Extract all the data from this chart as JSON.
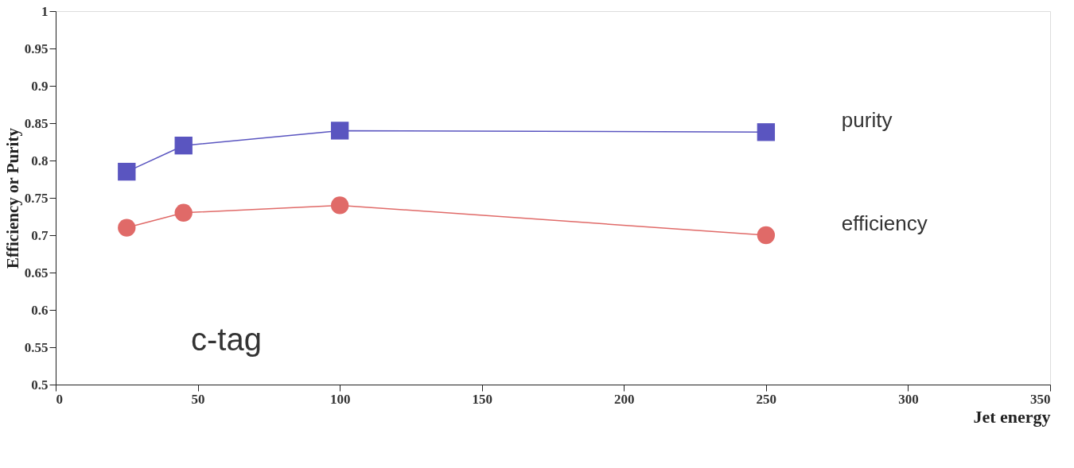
{
  "chart_data": {
    "type": "line",
    "xlabel": "Jet energy",
    "ylabel": "Efficiency or Purity",
    "x": [
      25,
      45,
      100,
      250
    ],
    "series": [
      {
        "name": "purity",
        "color": "#5a55c0",
        "marker": "square",
        "values": [
          0.785,
          0.82,
          0.84,
          0.838
        ]
      },
      {
        "name": "efficiency",
        "color": "#e06a68",
        "marker": "circle",
        "values": [
          0.71,
          0.73,
          0.74,
          0.7
        ]
      }
    ],
    "xlim": [
      0,
      350
    ],
    "xticks": [
      0,
      50,
      100,
      150,
      200,
      250,
      300,
      350
    ],
    "ylim": [
      0.5,
      1
    ],
    "yticks": [
      0.5,
      0.55,
      0.6,
      0.65,
      0.7,
      0.75,
      0.8,
      0.85,
      0.9,
      0.95,
      1
    ],
    "annotations": [
      "c-tag"
    ],
    "grid": false
  }
}
